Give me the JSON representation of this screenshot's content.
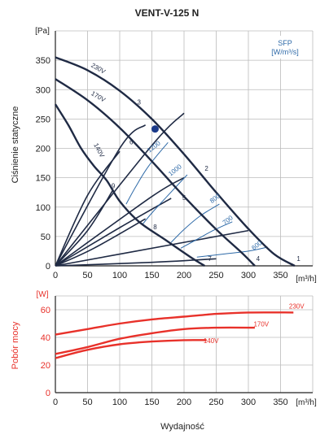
{
  "chart_data": [
    {
      "type": "line",
      "title": "VENT-V-125 N",
      "ylabel": "Ciśnienie statyczne",
      "yunit": "[Pa]",
      "xunit": "[m³/h]",
      "xlim": [
        0,
        400
      ],
      "ylim": [
        0,
        400
      ],
      "xticks": [
        0,
        50,
        100,
        150,
        200,
        250,
        300,
        350
      ],
      "yticks": [
        0,
        50,
        100,
        150,
        200,
        250,
        300,
        350
      ],
      "grid": true,
      "fan_curves": [
        {
          "name": "230V",
          "points": [
            [
              0,
              355
            ],
            [
              50,
              333
            ],
            [
              100,
              298
            ],
            [
              150,
              250
            ],
            [
              200,
              190
            ],
            [
              250,
              125
            ],
            [
              300,
              63
            ],
            [
              340,
              20
            ],
            [
              372,
              0
            ]
          ]
        },
        {
          "name": "170V",
          "points": [
            [
              0,
              318
            ],
            [
              50,
              282
            ],
            [
              100,
              235
            ],
            [
              150,
              178
            ],
            [
              200,
              118
            ],
            [
              250,
              62
            ],
            [
              290,
              22
            ],
            [
              310,
              0
            ]
          ]
        },
        {
          "name": "140V",
          "points": [
            [
              0,
              275
            ],
            [
              20,
              240
            ],
            [
              40,
              200
            ],
            [
              60,
              170
            ],
            [
              80,
              145
            ],
            [
              100,
              110
            ],
            [
              130,
              75
            ],
            [
              170,
              45
            ],
            [
              210,
              15
            ],
            [
              232,
              0
            ]
          ]
        }
      ],
      "system_curves": [
        {
          "name": "1",
          "points": [
            [
              0,
              0
            ],
            [
              150,
              205
            ],
            [
              200,
              260
            ]
          ]
        },
        {
          "name": "2",
          "points": [
            [
              0,
              0
            ],
            [
              150,
              118
            ],
            [
              200,
              150
            ]
          ]
        },
        {
          "name": "3",
          "points": [
            [
              0,
              0
            ],
            [
              100,
              200
            ],
            [
              140,
              240
            ]
          ]
        },
        {
          "name": "4",
          "points": [
            [
              0,
              0
            ],
            [
              200,
              40
            ],
            [
              300,
              60
            ]
          ]
        },
        {
          "name": "5",
          "points": [
            [
              0,
              0
            ],
            [
              100,
              65
            ],
            [
              180,
              115
            ]
          ]
        },
        {
          "name": "6",
          "points": [
            [
              0,
              0
            ],
            [
              50,
              120
            ],
            [
              100,
              195
            ]
          ]
        },
        {
          "name": "7",
          "points": [
            [
              0,
              0
            ],
            [
              150,
              6
            ],
            [
              250,
              12
            ]
          ]
        },
        {
          "name": "8",
          "points": [
            [
              0,
              0
            ],
            [
              60,
              30
            ],
            [
              140,
              80
            ]
          ]
        },
        {
          "name": "9",
          "points": [
            [
              0,
              0
            ],
            [
              50,
              60
            ],
            [
              90,
              130
            ]
          ]
        }
      ],
      "sfp_curves": [
        {
          "name": "600",
          "points": [
            [
              220,
              15
            ],
            [
              260,
              20
            ],
            [
              300,
              25
            ],
            [
              330,
              32
            ]
          ]
        },
        {
          "name": "700",
          "points": [
            [
              195,
              30
            ],
            [
              220,
              45
            ],
            [
              245,
              60
            ],
            [
              275,
              75
            ]
          ]
        },
        {
          "name": "800",
          "points": [
            [
              180,
              40
            ],
            [
              200,
              62
            ],
            [
              225,
              85
            ],
            [
              255,
              105
            ]
          ]
        },
        {
          "name": "1000",
          "points": [
            [
              135,
              70
            ],
            [
              150,
              90
            ],
            [
              175,
              120
            ],
            [
              205,
              155
            ]
          ]
        },
        {
          "name": "1200",
          "points": [
            [
              110,
              105
            ],
            [
              125,
              135
            ],
            [
              145,
              170
            ],
            [
              175,
              210
            ]
          ]
        }
      ],
      "curve_labels": [
        {
          "text": "230V",
          "x": 65,
          "y": 333
        },
        {
          "text": "170V",
          "x": 65,
          "y": 285
        },
        {
          "text": "140V",
          "x": 65,
          "y": 195
        },
        {
          "text": "1",
          "x": 378,
          "y": 8
        },
        {
          "text": "2",
          "x": 235,
          "y": 162
        },
        {
          "text": "3",
          "x": 130,
          "y": 275
        },
        {
          "text": "4",
          "x": 315,
          "y": 8
        },
        {
          "text": "5",
          "x": 200,
          "y": 112
        },
        {
          "text": "6",
          "x": 118,
          "y": 207
        },
        {
          "text": "7",
          "x": 240,
          "y": 8
        },
        {
          "text": "8",
          "x": 155,
          "y": 62
        },
        {
          "text": "9",
          "x": 90,
          "y": 132
        },
        {
          "text": "600",
          "x": 315,
          "y": 32
        },
        {
          "text": "700",
          "x": 270,
          "y": 75
        },
        {
          "text": "800",
          "x": 250,
          "y": 112
        },
        {
          "text": "1000",
          "x": 188,
          "y": 160
        },
        {
          "text": "1200",
          "x": 155,
          "y": 200
        }
      ],
      "sfp_label": [
        "SFP",
        "[W/m³/s]"
      ],
      "operating_point": {
        "x": 155,
        "y": 233
      },
      "colors": {
        "fan": "#1f2a44",
        "sfp": "#2e6aa8",
        "marker": "#1b3a8a",
        "grid": "#bbbbbb"
      }
    },
    {
      "type": "line",
      "ylabel": "Pobór mocy",
      "yunit": "[W]",
      "xunit": "[m³/h]",
      "xlim": [
        0,
        400
      ],
      "ylim": [
        0,
        70
      ],
      "xticks": [
        0,
        50,
        100,
        150,
        200,
        250,
        300,
        350
      ],
      "yticks": [
        0,
        20,
        40,
        60
      ],
      "grid": true,
      "series": [
        {
          "name": "230V",
          "points": [
            [
              0,
              42
            ],
            [
              50,
              46
            ],
            [
              100,
              50
            ],
            [
              150,
              53
            ],
            [
              200,
              55
            ],
            [
              250,
              57
            ],
            [
              300,
              58
            ],
            [
              370,
              58
            ]
          ]
        },
        {
          "name": "170V",
          "points": [
            [
              0,
              28
            ],
            [
              50,
              33
            ],
            [
              100,
              39
            ],
            [
              150,
              43
            ],
            [
              200,
              46
            ],
            [
              250,
              47
            ],
            [
              310,
              47
            ]
          ]
        },
        {
          "name": "140V",
          "points": [
            [
              0,
              25
            ],
            [
              50,
              31
            ],
            [
              100,
              35
            ],
            [
              150,
              37
            ],
            [
              200,
              38
            ],
            [
              235,
              38
            ]
          ]
        }
      ],
      "series_labels": [
        {
          "text": "230V",
          "x": 375,
          "y": 61
        },
        {
          "text": "170V",
          "x": 320,
          "y": 48
        },
        {
          "text": "140V",
          "x": 242,
          "y": 36
        }
      ],
      "colors": {
        "series": "#e8312a",
        "axis_label": "#e8312a",
        "grid": "#bbbbbb"
      }
    }
  ],
  "footer": {
    "xlabel": "Wydajność"
  }
}
